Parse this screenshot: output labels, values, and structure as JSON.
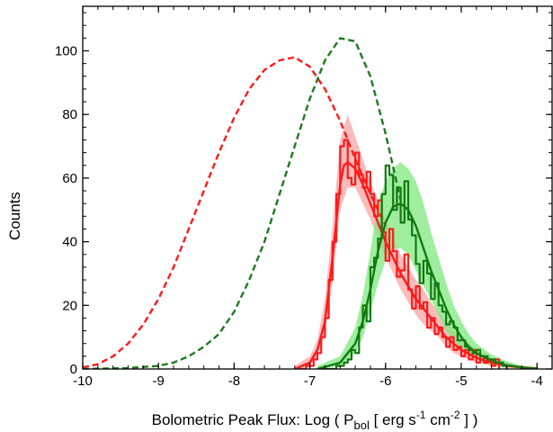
{
  "chart_data": {
    "type": "line",
    "xlabel": {
      "prefix": "Bolometric Peak Flux:   Log ( P",
      "sub1": "bol",
      "mid1": "  [ erg s",
      "sup1": "-1",
      "mid2": " cm",
      "sup2": "-2",
      "suffix": " ] )"
    },
    "ylabel": "Counts",
    "xlim": [
      -10,
      -3.8
    ],
    "ylim": [
      0,
      114
    ],
    "x_ticks": [
      -10,
      -9,
      -8,
      -7,
      -6,
      -5,
      -4
    ],
    "x_tick_labels": [
      "-10",
      "-9",
      "-8",
      "-7",
      "-6",
      "-5",
      "-4"
    ],
    "y_ticks": [
      0,
      20,
      40,
      60,
      80,
      100
    ],
    "y_tick_labels": [
      "0",
      "20",
      "40",
      "60",
      "80",
      "100"
    ],
    "grid": false,
    "colors": {
      "red": "#ff1a1a",
      "green_dark": "#117a11",
      "green_dashed": "#1e7a1e",
      "red_band": "#f7a5a5",
      "green_band": "#7ee87e"
    },
    "series": [
      {
        "style": "dashed",
        "color": "#ff1a1a",
        "x": [
          -10.0,
          -9.8,
          -9.6,
          -9.4,
          -9.2,
          -9.0,
          -8.8,
          -8.6,
          -8.4,
          -8.2,
          -8.0,
          -7.8,
          -7.6,
          -7.4,
          -7.2,
          -7.0,
          -6.8,
          -6.6,
          -6.4,
          -6.2,
          -6.0
        ],
        "y": [
          0.5,
          1.5,
          4,
          8,
          14,
          22,
          32,
          44,
          56,
          68,
          79,
          88,
          94,
          97,
          98,
          95,
          88,
          78,
          66,
          55,
          45
        ]
      },
      {
        "style": "dashed",
        "color": "#1e7a1e",
        "x": [
          -10.0,
          -9.4,
          -9.0,
          -8.8,
          -8.6,
          -8.4,
          -8.2,
          -8.0,
          -7.8,
          -7.6,
          -7.4,
          -7.2,
          -7.0,
          -6.8,
          -6.6,
          -6.4,
          -6.2,
          -6.0,
          -5.8
        ],
        "y": [
          0,
          0.3,
          1,
          2,
          4,
          7,
          11,
          18,
          28,
          40,
          55,
          70,
          85,
          97,
          104,
          103,
          92,
          74,
          53
        ]
      },
      {
        "style": "solid",
        "color": "#ff1a1a",
        "x": [
          -7.2,
          -7.0,
          -6.9,
          -6.8,
          -6.7,
          -6.6,
          -6.55,
          -6.5,
          -6.4,
          -6.3,
          -6.2,
          -6.1,
          -6.0,
          -5.9,
          -5.8,
          -5.7,
          -5.6,
          -5.5,
          -5.4,
          -5.3,
          -5.2,
          -5.1,
          -5.0,
          -4.8,
          -4.6,
          -4.4,
          -4.2,
          -4.0
        ],
        "y": [
          0,
          2,
          6,
          15,
          35,
          58,
          64,
          65,
          63,
          58,
          52,
          46,
          40,
          35,
          30,
          26,
          22,
          19,
          16,
          13,
          10,
          8,
          6,
          3.5,
          2,
          1,
          0.5,
          0.2
        ]
      },
      {
        "style": "solid",
        "color": "#117a11",
        "x": [
          -6.9,
          -6.6,
          -6.4,
          -6.3,
          -6.2,
          -6.1,
          -6.0,
          -5.9,
          -5.8,
          -5.7,
          -5.6,
          -5.5,
          -5.4,
          -5.3,
          -5.2,
          -5.1,
          -5.0,
          -4.9,
          -4.8,
          -4.6,
          -4.4,
          -4.2,
          -4.0
        ],
        "y": [
          0,
          2,
          8,
          15,
          25,
          37,
          46,
          51,
          52,
          50,
          45,
          38,
          31,
          25,
          19,
          14,
          10,
          7,
          5,
          2.5,
          1.2,
          0.5,
          0.1
        ]
      },
      {
        "style": "step",
        "color": "#ff1a1a",
        "x": [
          -7.2,
          -7.15,
          -7.1,
          -7.05,
          -7.0,
          -6.95,
          -6.9,
          -6.85,
          -6.8,
          -6.75,
          -6.7,
          -6.65,
          -6.6,
          -6.55,
          -6.5,
          -6.45,
          -6.4,
          -6.35,
          -6.3,
          -6.25,
          -6.2,
          -6.15,
          -6.1,
          -6.05,
          -6.0,
          -5.95,
          -5.9,
          -5.85,
          -5.8,
          -5.75,
          -5.7,
          -5.65,
          -5.6,
          -5.55,
          -5.5,
          -5.45,
          -5.4,
          -5.35,
          -5.3,
          -5.25,
          -5.2,
          -5.15,
          -5.1,
          -5.05,
          -5.0,
          -4.95,
          -4.9,
          -4.85,
          -4.8,
          -4.75,
          -4.7,
          -4.65,
          -4.6,
          -4.55,
          -4.5
        ],
        "y": [
          0,
          0,
          0,
          1,
          1,
          3,
          5,
          10,
          16,
          28,
          40,
          55,
          70,
          72,
          60,
          58,
          68,
          61,
          57,
          62,
          55,
          48,
          53,
          43,
          34,
          44,
          37,
          29,
          31,
          36,
          25,
          19,
          26,
          19,
          21,
          13,
          16,
          11,
          13,
          10,
          7,
          10,
          6,
          7,
          4,
          6,
          3,
          6,
          2,
          4,
          2,
          3,
          1,
          3,
          0
        ]
      },
      {
        "style": "step",
        "color": "#117a11",
        "x": [
          -6.9,
          -6.85,
          -6.8,
          -6.75,
          -6.7,
          -6.65,
          -6.6,
          -6.55,
          -6.5,
          -6.45,
          -6.4,
          -6.35,
          -6.3,
          -6.25,
          -6.2,
          -6.15,
          -6.1,
          -6.05,
          -6.0,
          -5.95,
          -5.9,
          -5.85,
          -5.8,
          -5.75,
          -5.7,
          -5.65,
          -5.6,
          -5.55,
          -5.5,
          -5.45,
          -5.4,
          -5.35,
          -5.3,
          -5.25,
          -5.2,
          -5.15,
          -5.1,
          -5.05,
          -5.0,
          -4.95,
          -4.9,
          -4.85,
          -4.8,
          -4.75,
          -4.7,
          -4.65,
          -4.6,
          -4.55,
          -4.5,
          -4.45,
          -4.4
        ],
        "y": [
          0,
          0,
          0,
          0,
          0,
          1,
          1,
          2,
          3,
          6,
          5,
          13,
          20,
          15,
          32,
          35,
          41,
          55,
          64,
          61,
          50,
          57,
          46,
          59,
          47,
          42,
          33,
          27,
          34,
          30,
          22,
          27,
          20,
          18,
          14,
          15,
          13,
          9,
          9,
          7,
          6,
          5,
          6,
          4,
          4,
          3,
          3,
          2,
          2,
          1,
          0
        ]
      }
    ],
    "bands": [
      {
        "color": "#f7a5a5",
        "x": [
          -7.2,
          -7.0,
          -6.9,
          -6.8,
          -6.7,
          -6.6,
          -6.5,
          -6.4,
          -6.3,
          -6.2,
          -6.1,
          -6.0,
          -5.9,
          -5.8,
          -5.7,
          -5.6,
          -5.5,
          -5.4,
          -5.3,
          -5.2,
          -5.1,
          -5.0,
          -4.8,
          -4.6,
          -4.4,
          -4.2,
          -4.0
        ],
        "lower": [
          0,
          1,
          4,
          11,
          27,
          50,
          57,
          57,
          52,
          47,
          41,
          35,
          30,
          25,
          21,
          17,
          14,
          12,
          10,
          7,
          5,
          4,
          2,
          1,
          0.5,
          0.2,
          0
        ],
        "upper": [
          1,
          4,
          9,
          22,
          45,
          72,
          80,
          73,
          66,
          59,
          53,
          47,
          41,
          36,
          32,
          28,
          25,
          21,
          18,
          15,
          12,
          10,
          6,
          3.5,
          2,
          1,
          0.5
        ]
      },
      {
        "color": "#7ee87e",
        "x": [
          -6.9,
          -6.6,
          -6.4,
          -6.3,
          -6.2,
          -6.1,
          -6.0,
          -5.9,
          -5.8,
          -5.7,
          -5.6,
          -5.5,
          -5.4,
          -5.3,
          -5.2,
          -5.1,
          -5.0,
          -4.9,
          -4.8,
          -4.6,
          -4.4,
          -4.2,
          -4.0
        ],
        "lower": [
          0,
          1,
          5,
          10,
          18,
          27,
          34,
          38,
          38,
          36,
          31,
          26,
          22,
          17,
          12,
          9,
          6,
          4,
          3,
          1,
          0.5,
          0.2,
          0
        ],
        "upper": [
          1,
          4,
          13,
          23,
          37,
          52,
          59,
          63,
          65,
          63,
          59,
          52,
          43,
          35,
          27,
          20,
          15,
          11,
          8,
          4.5,
          2.5,
          1,
          0.5
        ]
      }
    ]
  }
}
